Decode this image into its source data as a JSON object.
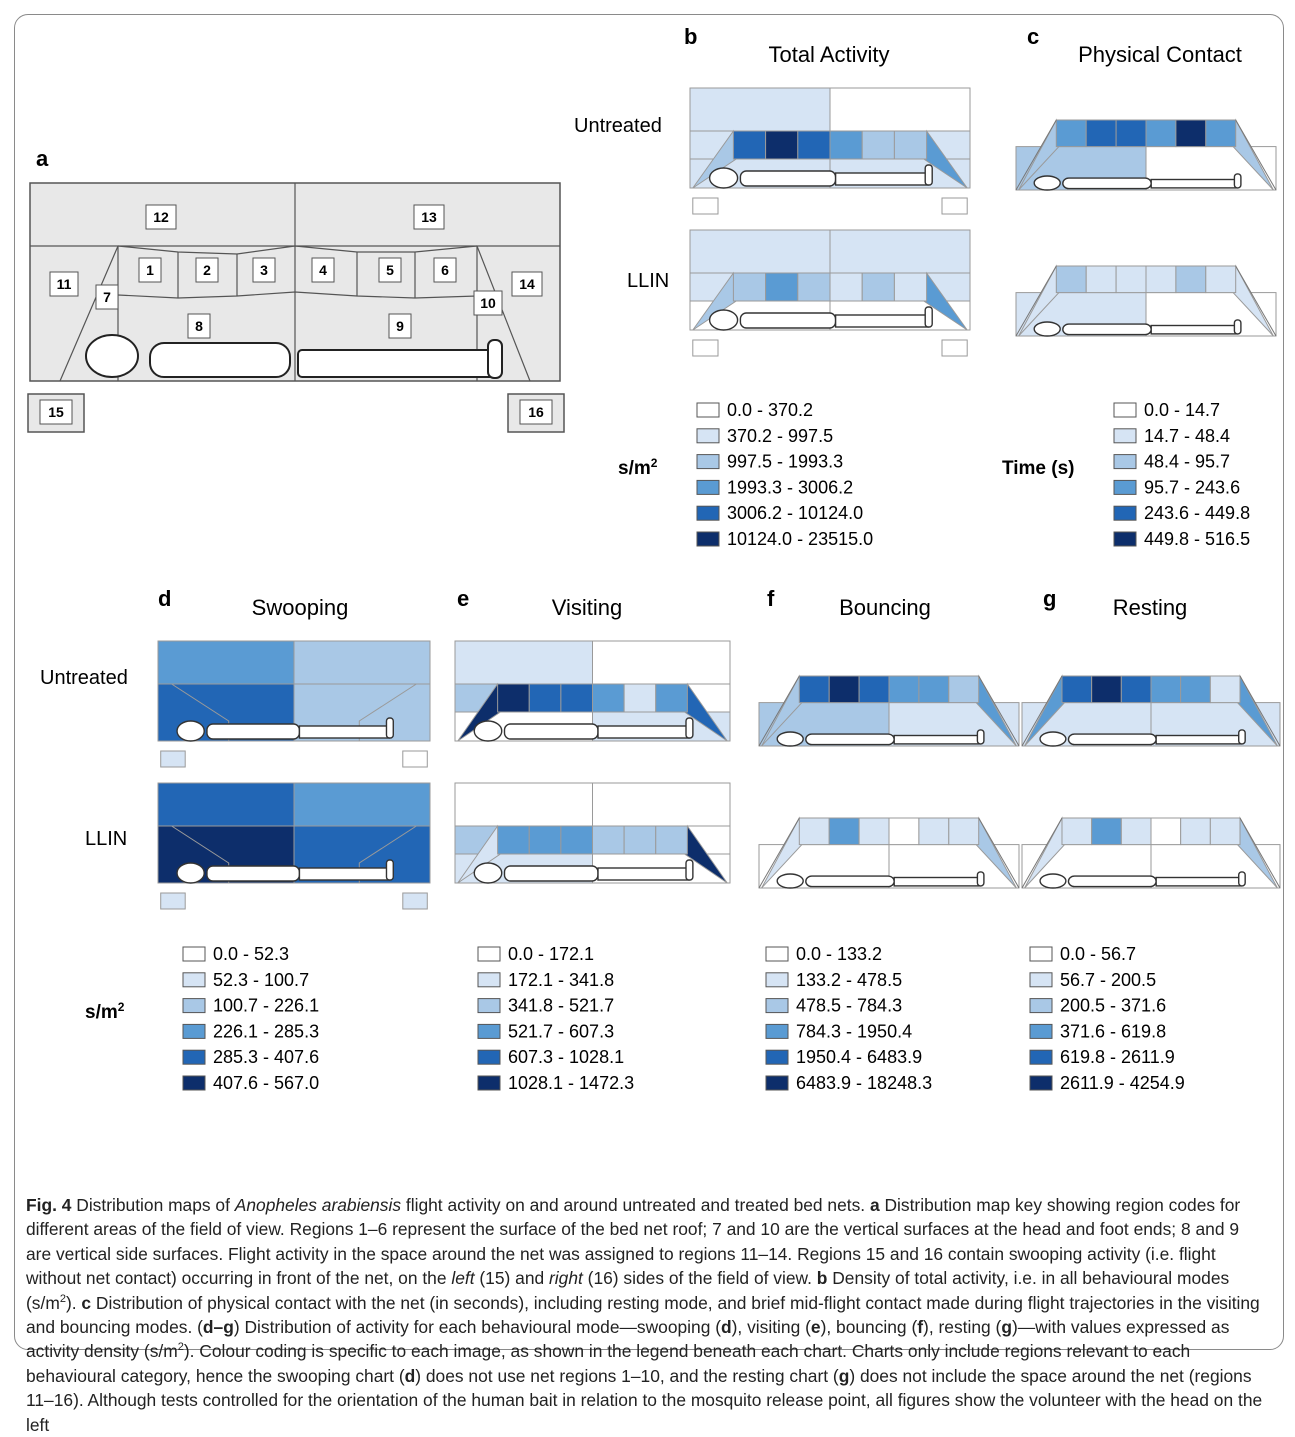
{
  "panels": {
    "a": {
      "letter": "a",
      "regions": [
        "1",
        "2",
        "3",
        "4",
        "5",
        "6",
        "7",
        "8",
        "9",
        "10",
        "11",
        "12",
        "13",
        "14",
        "15",
        "16"
      ]
    },
    "b": {
      "letter": "b",
      "title": "Total Activity"
    },
    "c": {
      "letter": "c",
      "title": "Physical Contact"
    },
    "d": {
      "letter": "d",
      "title": "Swooping"
    },
    "e": {
      "letter": "e",
      "title": "Visiting"
    },
    "f": {
      "letter": "f",
      "title": "Bouncing"
    },
    "g": {
      "letter": "g",
      "title": "Resting"
    }
  },
  "row_labels": {
    "untreated": "Untreated",
    "llin": "LLIN"
  },
  "palette": [
    "#ffffff",
    "#d6e4f4",
    "#a9c8e6",
    "#5a9bd3",
    "#2266b5",
    "#0d2e6b"
  ],
  "units": {
    "density": "s/m",
    "density_sup": "2",
    "time": "Time (s)"
  },
  "legends": {
    "b": [
      "0.0 - 370.2",
      "370.2 - 997.5",
      "997.5 - 1993.3",
      "1993.3 - 3006.2",
      "3006.2 - 10124.0",
      "10124.0 - 23515.0"
    ],
    "c": [
      "0.0 - 14.7",
      "14.7 - 48.4",
      "48.4 - 95.7",
      "95.7 - 243.6",
      "243.6 - 449.8",
      "449.8 - 516.5"
    ],
    "d": [
      "0.0 - 52.3",
      "52.3 - 100.7",
      "100.7 - 226.1",
      "226.1 - 285.3",
      "285.3 - 407.6",
      "407.6 - 567.0"
    ],
    "e": [
      "0.0 - 172.1",
      "172.1 - 341.8",
      "341.8 - 521.7",
      "521.7 - 607.3",
      "607.3 - 1028.1",
      "1028.1 - 1472.3"
    ],
    "f": [
      "0.0 - 133.2",
      "133.2 - 478.5",
      "478.5 - 784.3",
      "784.3 - 1950.4",
      "1950.4 - 6483.9",
      "6483.9 - 18248.3"
    ],
    "g": [
      "0.0 - 56.7",
      "56.7 - 200.5",
      "200.5 - 371.6",
      "371.6 - 619.8",
      "619.8 - 2611.9",
      "2611.9 - 4254.9"
    ]
  },
  "shading_classes": {
    "b_untreated": {
      "12": 1,
      "13": 0,
      "1": 4,
      "2": 5,
      "3": 4,
      "4": 3,
      "5": 2,
      "6": 2,
      "7": 2,
      "10": 3,
      "8": 1,
      "9": 1,
      "11": 1,
      "14": 1,
      "15": 0,
      "16": 0
    },
    "b_llin": {
      "12": 1,
      "13": 1,
      "1": 2,
      "2": 3,
      "3": 2,
      "4": 1,
      "5": 2,
      "6": 1,
      "7": 2,
      "10": 3,
      "8": 0,
      "9": 0,
      "11": 1,
      "14": 1,
      "15": 0,
      "16": 0
    },
    "c_untreated": {
      "1": 3,
      "2": 4,
      "3": 4,
      "4": 3,
      "5": 5,
      "6": 3,
      "7": 2,
      "10": 2,
      "8": 2,
      "9": 0
    },
    "c_llin": {
      "1": 2,
      "2": 1,
      "3": 1,
      "4": 1,
      "5": 2,
      "6": 1,
      "7": 1,
      "10": 1,
      "8": 1,
      "9": 0
    },
    "d_untreated": {
      "12": 3,
      "13": 2,
      "11": 4,
      "14": 2,
      "15": 1,
      "16": 0
    },
    "d_llin": {
      "12": 4,
      "13": 3,
      "11": 5,
      "14": 4,
      "15": 1,
      "16": 1
    },
    "e_untreated": {
      "12": 1,
      "13": 0,
      "1": 5,
      "2": 4,
      "3": 4,
      "4": 3,
      "5": 1,
      "6": 3,
      "7": 5,
      "10": 4,
      "8": 0,
      "9": 1,
      "11": 2,
      "14": 0
    },
    "e_llin": {
      "12": 0,
      "13": 0,
      "1": 3,
      "2": 3,
      "3": 3,
      "4": 2,
      "5": 2,
      "6": 2,
      "7": 1,
      "10": 5,
      "8": 1,
      "9": 0,
      "11": 2,
      "14": 0
    },
    "f_untreated": {
      "1": 4,
      "2": 5,
      "3": 4,
      "4": 3,
      "5": 3,
      "6": 2,
      "7": 2,
      "10": 3,
      "8": 2,
      "9": 1
    },
    "f_llin": {
      "1": 1,
      "2": 3,
      "3": 1,
      "4": 0,
      "5": 1,
      "6": 1,
      "7": 1,
      "10": 2,
      "8": 0,
      "9": 0
    },
    "g_untreated": {
      "1": 4,
      "2": 5,
      "3": 4,
      "4": 3,
      "5": 3,
      "6": 1,
      "7": 3,
      "10": 3,
      "8": 1,
      "9": 1
    },
    "g_llin": {
      "1": 1,
      "2": 3,
      "3": 1,
      "4": 0,
      "5": 1,
      "6": 1,
      "7": 1,
      "10": 2,
      "8": 0,
      "9": 0
    }
  },
  "caption": {
    "fig": "Fig. 4",
    "p1": "  Distribution maps of ",
    "species": "Anopheles arabiensis",
    "p2": " flight activity on and around untreated and treated bed nets. ",
    "a": "a",
    "p3": " Distribution map key showing region codes for different areas of the field of view. Regions 1–6 represent the surface of the bed net roof; 7 and 10 are the vertical surfaces at the head and foot ends; 8 and 9 are vertical side surfaces. Flight activity in the space around the net was assigned to regions 11–14. Regions 15 and 16 contain swooping activity (i.e. flight without net contact) occurring in front of the net, on the ",
    "left": "left",
    "p4": " (15) and ",
    "right": "right",
    "p5": " (16) sides of the field of view. ",
    "b": "b",
    "p6": " Density of total activity, i.e. in all behavioural modes (s/m",
    "sup": "2",
    "p7": "). ",
    "c": "c",
    "p8": " Distribution of physical contact with the net (in seconds), including resting mode, and brief mid-flight contact made during flight trajectories in the visiting and bouncing modes. (",
    "dg": "d–g",
    "p9": ") Distribution of activity for each behavioural mode—swooping (",
    "d": "d",
    "p10": "), visiting (",
    "e": "e",
    "p11": "), bouncing (",
    "f": "f",
    "p12": "), resting (",
    "g": "g",
    "p13": ")—with values expressed as activity density (s/m",
    "p14": "). Colour coding is specific to each image, as shown in the legend beneath each chart. Charts only include regions relevant to each behavioural category, hence the swooping chart (",
    "p15": ") does not use net regions 1–10, and the resting chart (",
    "p16": ") does not include the space around the net (regions 11–16). Although tests controlled for the orientation of the human bait in relation to the mosquito release point, all figures show the volunteer with the head on the left"
  }
}
